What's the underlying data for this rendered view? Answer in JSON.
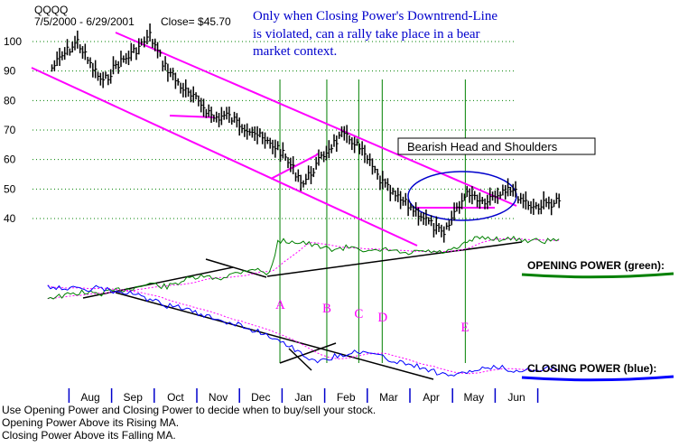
{
  "chart_data": {
    "type": "line",
    "header": {
      "symbol": "QQQQ",
      "date_range": "7/5/2000 - 6/29/2001",
      "close": "Close= $45.70"
    },
    "annotation_lines": [
      "Only when Closing Power's Downtrend-Line",
      "is violated, can a rally take place in a bear",
      "market context."
    ],
    "pattern_label": "Bearish Head and Shoulders",
    "y_ticks": [
      100,
      90,
      80,
      70,
      60,
      50,
      40
    ],
    "ylim": [
      30,
      105
    ],
    "months": [
      "Aug",
      "Sep",
      "Oct",
      "Nov",
      "Dec",
      "Jan",
      "Feb",
      "Mar",
      "Apr",
      "May",
      "Jun"
    ],
    "events": [
      {
        "label": "A",
        "month_pos": 4.45
      },
      {
        "label": "B",
        "month_pos": 5.55
      },
      {
        "label": "C",
        "month_pos": 6.3
      },
      {
        "label": "D",
        "month_pos": 6.85
      },
      {
        "label": "E",
        "month_pos": 8.8
      }
    ],
    "price": {
      "month_pos": [
        -0.9,
        -0.6,
        -0.3,
        0,
        0.3,
        0.6,
        0.9,
        1.2,
        1.4,
        1.7,
        2.0,
        2.3,
        2.6,
        2.9,
        3.2,
        3.5,
        3.8,
        4.1,
        4.4,
        4.7,
        5.0,
        5.3,
        5.6,
        5.9,
        6.2,
        6.5,
        6.8,
        7.1,
        7.4,
        7.7,
        8.0,
        8.3,
        8.6,
        8.9,
        9.2,
        9.5,
        9.8,
        10.1,
        10.4,
        10.7,
        11.0
      ],
      "values": [
        91,
        96,
        100,
        92,
        86,
        92,
        95,
        99,
        102,
        93,
        87,
        82,
        79,
        74,
        75,
        72,
        70,
        66,
        64,
        58,
        52,
        58,
        64,
        68,
        66,
        60,
        53,
        48,
        45,
        42,
        38,
        34,
        44,
        49,
        46,
        48,
        51,
        47,
        44,
        45,
        46
      ]
    },
    "opening_power": {
      "label": "OPENING POWER (green):",
      "month_pos": [
        -1.0,
        -0.6,
        -0.2,
        0.2,
        0.6,
        1.0,
        1.4,
        1.8,
        2.2,
        2.6,
        3.0,
        3.4,
        3.8,
        4.2,
        4.4,
        4.6,
        5.0,
        5.4,
        5.8,
        6.2,
        6.6,
        7.0,
        7.4,
        7.8,
        8.2,
        8.6,
        8.9,
        9.2,
        9.6,
        10.0,
        10.4,
        10.8,
        11.0
      ],
      "values": [
        6,
        8,
        12,
        10,
        14,
        17,
        22,
        18,
        26,
        30,
        28,
        34,
        40,
        33,
        70,
        72,
        70,
        64,
        62,
        66,
        58,
        62,
        56,
        60,
        58,
        62,
        72,
        76,
        74,
        74,
        72,
        72,
        74
      ]
    },
    "closing_power": {
      "label": "CLOSING POWER (blue):",
      "month_pos": [
        -1.0,
        -0.6,
        -0.2,
        0.2,
        0.6,
        1.0,
        1.4,
        1.8,
        2.2,
        2.6,
        3.0,
        3.4,
        3.8,
        4.2,
        4.6,
        5.0,
        5.4,
        5.8,
        6.2,
        6.6,
        7.0,
        7.4,
        7.8,
        8.2,
        8.6,
        8.9,
        9.2,
        9.6,
        10.0,
        10.4,
        10.8,
        11.0
      ],
      "values": [
        94,
        92,
        90,
        92,
        88,
        86,
        80,
        74,
        72,
        64,
        60,
        56,
        50,
        44,
        36,
        24,
        18,
        24,
        28,
        26,
        20,
        16,
        12,
        6,
        4,
        8,
        10,
        12,
        8,
        10,
        12,
        10
      ]
    },
    "footer_lines": [
      "Use Opening Power and Closing Power to decide when to buy/sell your stock.",
      "Opening Power Above its Rising MA.",
      "Closing Power Above its Falling MA."
    ],
    "grid": true,
    "colors": {
      "price": "#000000",
      "channel": "#ff00ff",
      "event_line": "#008000",
      "opening_power": "#008000",
      "closing_power": "#0000ff",
      "moving_avg": "#ff00ff",
      "trend_line": "#000000",
      "grid": "#008000"
    }
  }
}
